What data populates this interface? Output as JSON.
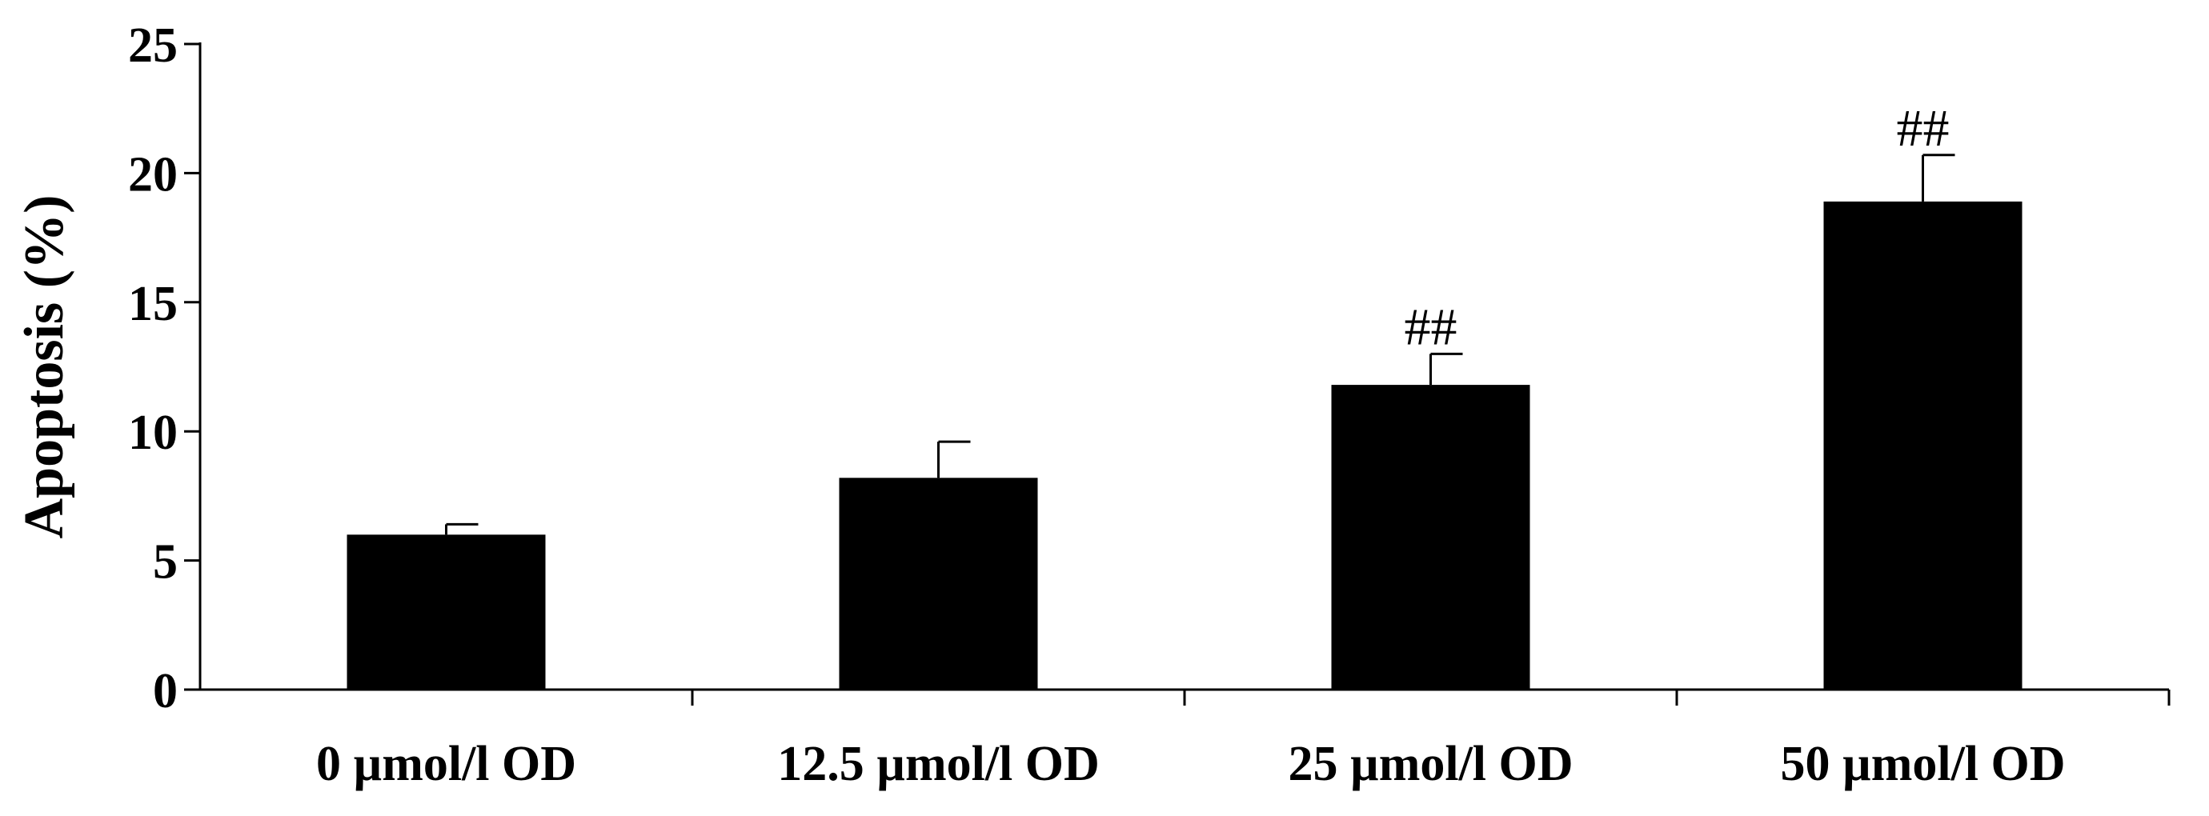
{
  "chart_data": {
    "type": "bar",
    "title": "",
    "xlabel": "",
    "ylabel": "Apoptosis (%)",
    "ylim": [
      0,
      25
    ],
    "yticks": [
      0,
      5,
      10,
      15,
      20,
      25
    ],
    "grid": false,
    "categories": [
      "0 µmol/l OD",
      "12.5 µmol/l OD",
      "25 µmol/l OD",
      "50 µmol/l OD"
    ],
    "values": [
      6.0,
      8.2,
      11.8,
      18.9
    ],
    "error": [
      0.4,
      1.4,
      1.2,
      1.8
    ],
    "annotations": [
      "",
      "",
      "##",
      "##"
    ],
    "colors": {
      "bar": "#000000",
      "axis": "#000000",
      "background": "#ffffff"
    }
  }
}
